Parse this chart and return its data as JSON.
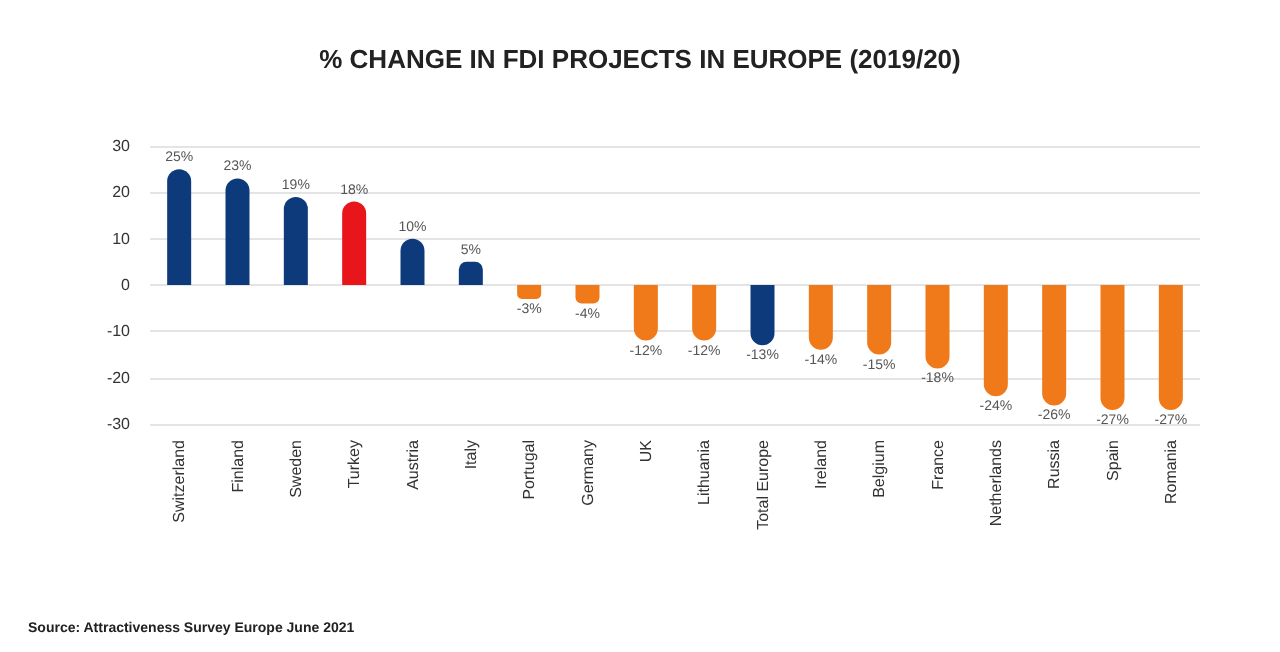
{
  "chart_data": {
    "type": "bar",
    "title": "% CHANGE IN FDI PROJECTS IN EUROPE (2019/20)",
    "categories": [
      "Switzerland",
      "Finland",
      "Sweden",
      "Turkey",
      "Austria",
      "Italy",
      "Portugal",
      "Germany",
      "UK",
      "Lithuania",
      "Total Europe",
      "Ireland",
      "Belgium",
      "France",
      "Netherlands",
      "Russia",
      "Spain",
      "Romania"
    ],
    "values": [
      25,
      23,
      19,
      18,
      10,
      5,
      -3,
      -4,
      -12,
      -12,
      -13,
      -14,
      -15,
      -18,
      -24,
      -26,
      -27,
      -27
    ],
    "value_labels": [
      "25%",
      "23%",
      "19%",
      "18%",
      "10%",
      "5%",
      "-3%",
      "-4%",
      "-12%",
      "-12%",
      "-13%",
      "-14%",
      "-15%",
      "-18%",
      "-24%",
      "-26%",
      "-27%",
      "-27%"
    ],
    "colors": [
      "#0d3a7a",
      "#0d3a7a",
      "#0d3a7a",
      "#e8161b",
      "#0d3a7a",
      "#0d3a7a",
      "#f07a1a",
      "#f07a1a",
      "#f07a1a",
      "#f07a1a",
      "#0d3a7a",
      "#f07a1a",
      "#f07a1a",
      "#f07a1a",
      "#f07a1a",
      "#f07a1a",
      "#f07a1a",
      "#f07a1a"
    ],
    "ylim": [
      -30,
      30
    ],
    "yticks": [
      -30,
      -20,
      -10,
      0,
      10,
      20,
      30
    ],
    "grid": "y",
    "annotations": [
      "Source: Attractiveness Survey Europe June 2021"
    ]
  }
}
